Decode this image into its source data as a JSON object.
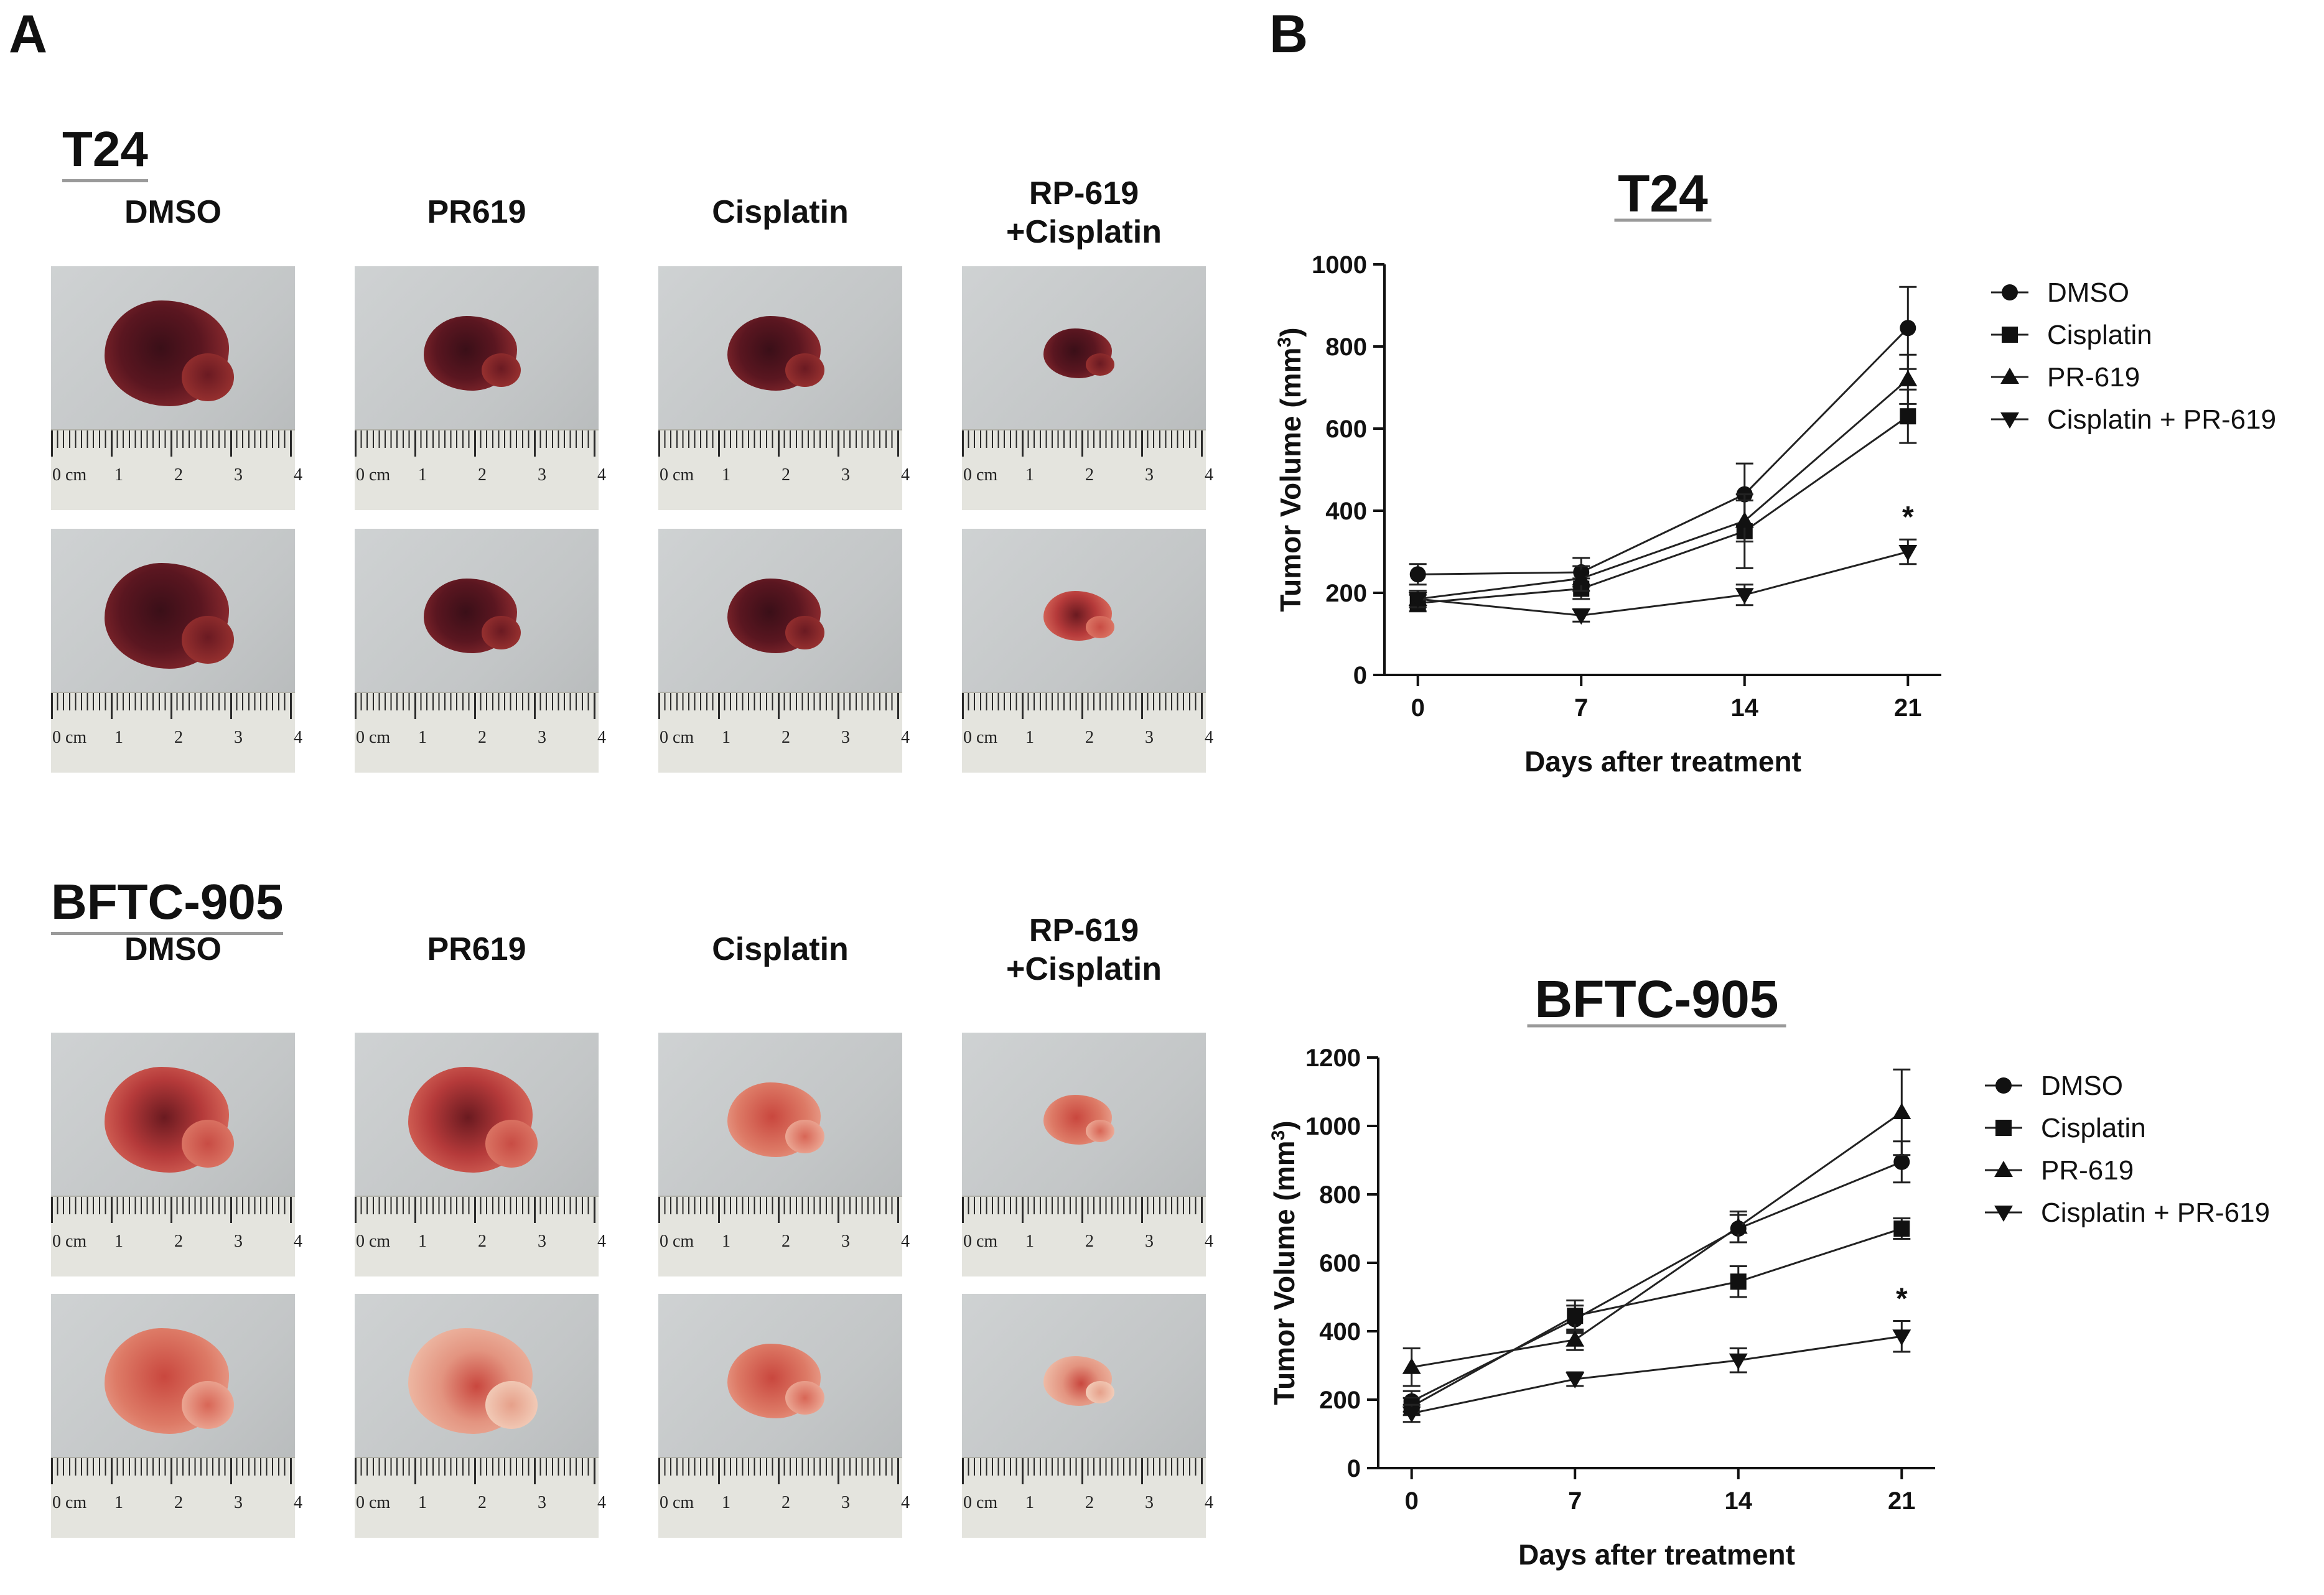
{
  "panels": {
    "a": {
      "letter": "A"
    },
    "b": {
      "letter": "B"
    }
  },
  "photo_panel": {
    "blocks": [
      {
        "title": "T24",
        "columns": [
          "DMSO",
          "PR619",
          "Cisplatin",
          "RP-619\n+Cisplatin"
        ],
        "ruler_numbers": [
          "0 cm",
          "1",
          "2",
          "3",
          "4"
        ],
        "rows": [
          [
            {
              "tone": "dark",
              "size": "large"
            },
            {
              "tone": "dark",
              "size": "medium"
            },
            {
              "tone": "dark",
              "size": "medium"
            },
            {
              "tone": "dark",
              "size": "small"
            }
          ],
          [
            {
              "tone": "dark",
              "size": "large"
            },
            {
              "tone": "dark",
              "size": "medium"
            },
            {
              "tone": "dark",
              "size": "medium"
            },
            {
              "tone": "red",
              "size": "small"
            }
          ]
        ]
      },
      {
        "title": "BFTC-905",
        "columns": [
          "DMSO",
          "PR619",
          "Cisplatin",
          "RP-619\n+Cisplatin"
        ],
        "ruler_numbers": [
          "0 cm",
          "1",
          "2",
          "3",
          "4"
        ],
        "rows": [
          [
            {
              "tone": "red",
              "size": "large"
            },
            {
              "tone": "red",
              "size": "large"
            },
            {
              "tone": "pink",
              "size": "medium"
            },
            {
              "tone": "pink",
              "size": "small"
            }
          ],
          [
            {
              "tone": "pink",
              "size": "large"
            },
            {
              "tone": "pale",
              "size": "large"
            },
            {
              "tone": "pink",
              "size": "medium"
            },
            {
              "tone": "pale",
              "size": "small"
            }
          ]
        ]
      }
    ]
  },
  "chart_data": [
    {
      "type": "line",
      "title": "T24",
      "xlabel": "Days after treatment",
      "ylabel": "Tumor Volume (mm",
      "ylabel_sup": "3",
      "ylabel_close": ")",
      "x": [
        0,
        7,
        14,
        21
      ],
      "x_ticks": [
        "0",
        "7",
        "14",
        "21"
      ],
      "ylim": [
        0,
        1000
      ],
      "y_ticks": [
        0,
        200,
        400,
        600,
        800,
        1000
      ],
      "legend_position": "right",
      "series": [
        {
          "name": "DMSO",
          "marker": "circle",
          "values": [
            245,
            250,
            440,
            845
          ],
          "errors": [
            25,
            35,
            75,
            100
          ]
        },
        {
          "name": "Cisplatin",
          "marker": "square",
          "values": [
            175,
            210,
            350,
            630
          ],
          "errors": [
            20,
            25,
            90,
            65
          ]
        },
        {
          "name": "PR-619",
          "marker": "triangle-up",
          "values": [
            185,
            235,
            375,
            720
          ],
          "errors": [
            20,
            30,
            50,
            60
          ]
        },
        {
          "name": "Cisplatin + PR-619",
          "marker": "triangle-down",
          "values": [
            185,
            145,
            195,
            300
          ],
          "errors": [
            20,
            15,
            25,
            30
          ]
        }
      ],
      "annotations": [
        {
          "text": "*",
          "x": 21,
          "series": "Cisplatin + PR-619"
        }
      ]
    },
    {
      "type": "line",
      "title": "BFTC-905",
      "xlabel": "Days after treatment",
      "ylabel": "Tumor Volume (mm",
      "ylabel_sup": "3",
      "ylabel_close": ")",
      "x": [
        0,
        7,
        14,
        21
      ],
      "x_ticks": [
        "0",
        "7",
        "14",
        "21"
      ],
      "ylim": [
        0,
        1200
      ],
      "y_ticks": [
        0,
        200,
        400,
        600,
        800,
        1000,
        1200
      ],
      "legend_position": "right",
      "series": [
        {
          "name": "DMSO",
          "marker": "circle",
          "values": [
            195,
            435,
            700,
            895
          ],
          "errors": [
            30,
            40,
            40,
            60
          ]
        },
        {
          "name": "Cisplatin",
          "marker": "square",
          "values": [
            180,
            445,
            545,
            700
          ],
          "errors": [
            25,
            45,
            45,
            30
          ]
        },
        {
          "name": "PR-619",
          "marker": "triangle-up",
          "values": [
            295,
            375,
            705,
            1040
          ],
          "errors": [
            55,
            30,
            45,
            125
          ]
        },
        {
          "name": "Cisplatin + PR-619",
          "marker": "triangle-down",
          "values": [
            160,
            260,
            315,
            385
          ],
          "errors": [
            25,
            20,
            35,
            45
          ]
        }
      ],
      "annotations": [
        {
          "text": "*",
          "x": 21,
          "series": "Cisplatin + PR-619"
        }
      ]
    }
  ]
}
